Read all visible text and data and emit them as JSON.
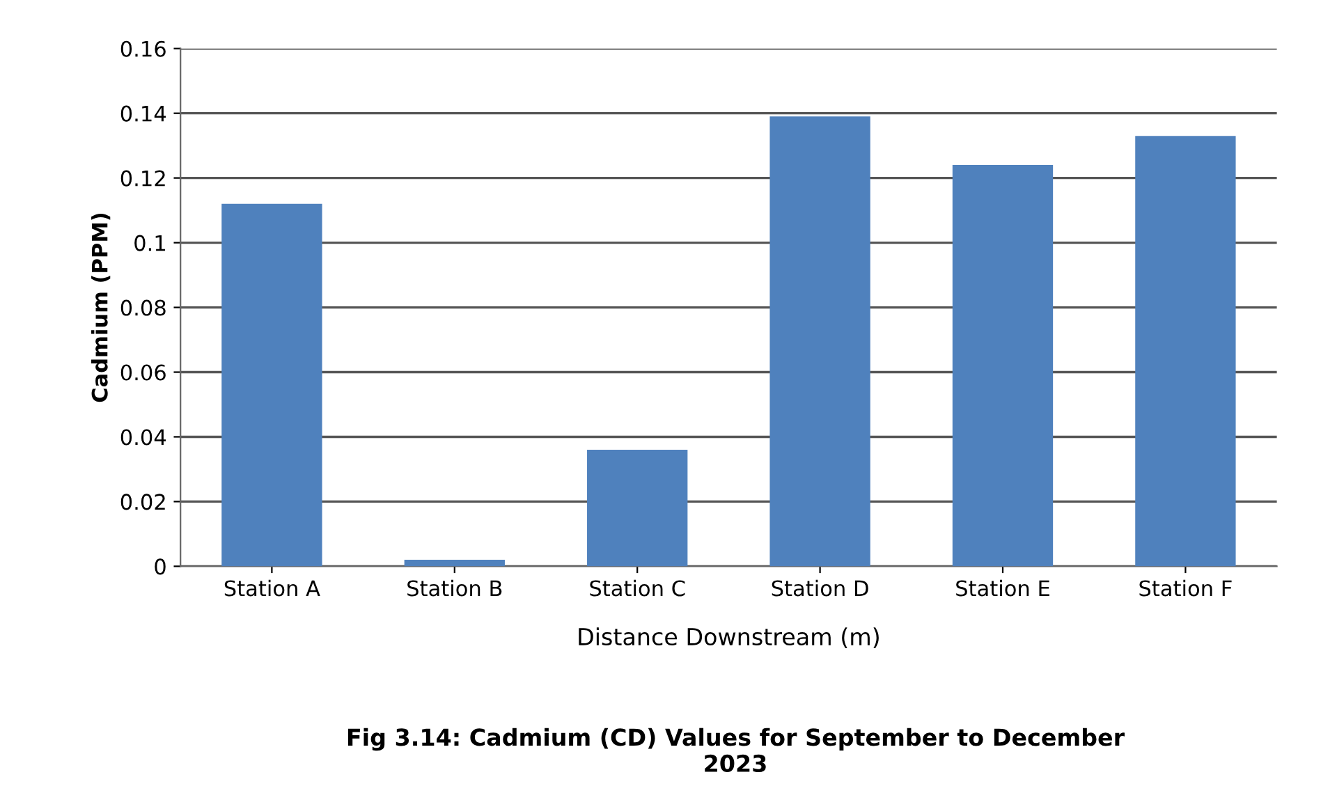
{
  "chart_data": {
    "type": "bar",
    "title": "Fig 3.14: Cadmium (CD) Values for September to December\n2023",
    "xlabel": "Distance Downstream (m)",
    "ylabel": "Cadmium (PPM)",
    "categories": [
      "Station A",
      "Station B",
      "Station C",
      "Station D",
      "Station E",
      "Station F"
    ],
    "values": [
      0.112,
      0.002,
      0.036,
      0.139,
      0.124,
      0.133
    ],
    "color": "#4f81bd",
    "ylim": [
      0,
      0.16
    ],
    "yticks": [
      0,
      {
        "value": 0.02,
        "label": "0.02"
      },
      {
        "value": 0.04,
        "label": "0.04"
      },
      {
        "value": 0.06,
        "label": "0.06"
      },
      {
        "value": 0.08,
        "label": "0.08"
      },
      0.1,
      0.12,
      0.14,
      0.16
    ],
    "grid": "y",
    "legend": false
  }
}
